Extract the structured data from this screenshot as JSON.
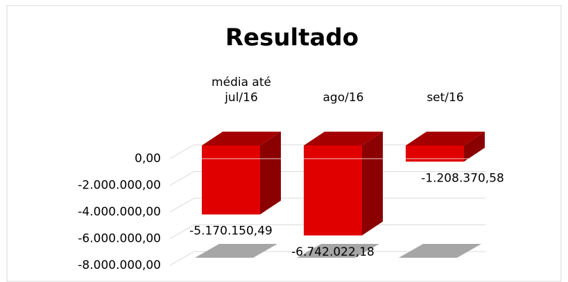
{
  "chart_data": {
    "type": "bar3d",
    "title": "Resultado",
    "categories": [
      "média até jul/16",
      "ago/16",
      "set/16"
    ],
    "values": [
      -5170150.49,
      -6742022.18,
      -1208370.58
    ],
    "value_labels": [
      "-5.170.150,49",
      "-6.742.022,18",
      "-1.208.370,58"
    ],
    "color": "#e00000",
    "ylim": [
      -8000000,
      0
    ],
    "yticks": [
      {
        "value": 0,
        "label": "0,00"
      },
      {
        "value": -2000000,
        "label": "-2.000.000,00"
      },
      {
        "value": -4000000,
        "label": "-4.000.000,00"
      },
      {
        "value": -6000000,
        "label": "-6.000.000,00"
      },
      {
        "value": -8000000,
        "label": "-8.000.000,00"
      }
    ],
    "grid": true
  }
}
